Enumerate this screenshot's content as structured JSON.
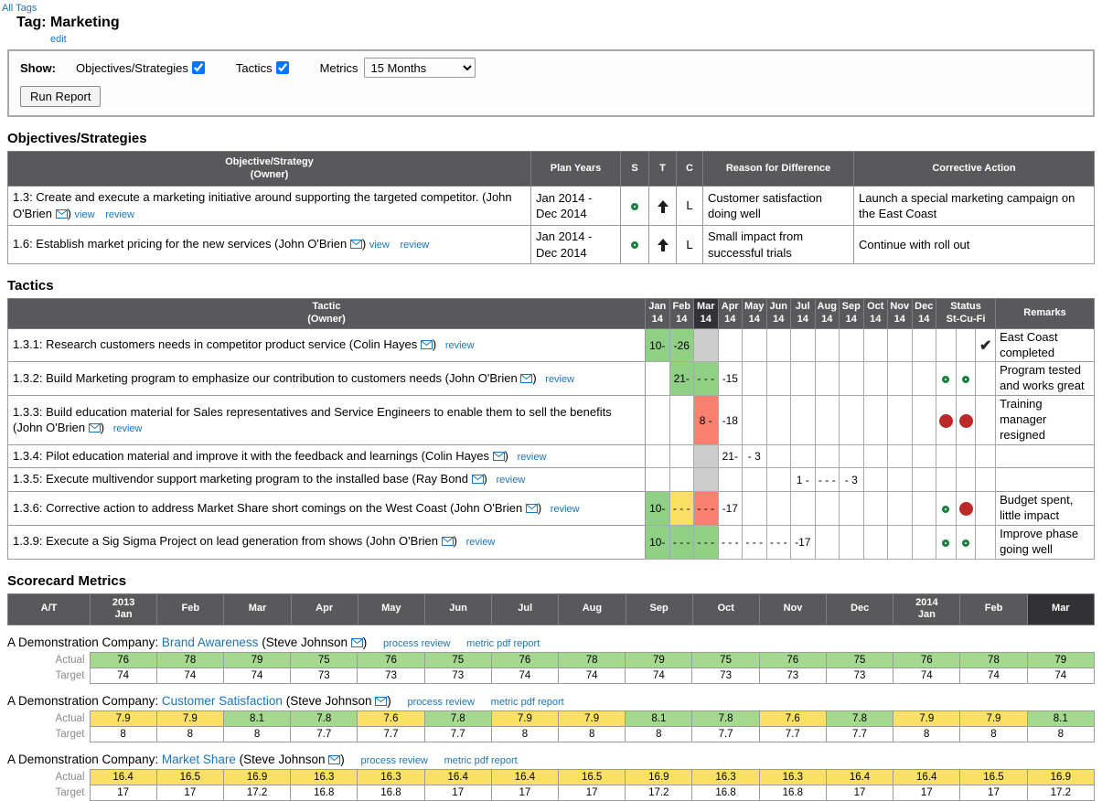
{
  "labels": {
    "all_tags": "All Tags",
    "edit": "edit",
    "view": "view",
    "review": "review",
    "paren_open": "(",
    "paren_close": ")",
    "actual": "Actual",
    "target": "Target",
    "process_review": "process review",
    "metric_pdf_report": "metric pdf report"
  },
  "page": {
    "title": "Tag: Marketing"
  },
  "controls": {
    "show": "Show:",
    "objectives_checkbox": "Objectives/Strategies",
    "tactics_checkbox": "Tactics",
    "metrics_label": "Metrics",
    "metrics_value": "15 Months",
    "run_report": "Run Report"
  },
  "objectives": {
    "title": "Objectives/Strategies",
    "headers": {
      "objective": "Objective/Strategy\n(Owner)",
      "plan_years": "Plan Years",
      "s": "S",
      "t": "T",
      "c": "C",
      "reason": "Reason for Difference",
      "corrective": "Corrective Action"
    },
    "rows": [
      {
        "text": "1.3: Create and execute a marketing initiative around supporting the targeted competitor.",
        "owner": "John O'Brien",
        "plan_years": "Jan 2014 - Dec 2014",
        "s": "green-ring",
        "t": "up-arrow",
        "c": "L",
        "reason": "Customer satisfaction doing well",
        "corrective": "Launch a special marketing campaign on the East Coast"
      },
      {
        "text": "1.6: Establish market pricing for the new services",
        "owner": "John O'Brien",
        "plan_years": "Jan 2014 - Dec 2014",
        "s": "green-ring",
        "t": "up-arrow",
        "c": "L",
        "reason": "Small impact from successful trials",
        "corrective": "Continue with roll out"
      }
    ]
  },
  "tactics": {
    "title": "Tactics",
    "headers": {
      "tactic": "Tactic\n(Owner)",
      "status": "Status\nSt-Cu-Fi",
      "remarks": "Remarks",
      "months": [
        {
          "t": "Jan\n14"
        },
        {
          "t": "Feb\n14"
        },
        {
          "t": "Mar\n14",
          "cur": true
        },
        {
          "t": "Apr\n14"
        },
        {
          "t": "May\n14"
        },
        {
          "t": "Jun\n14"
        },
        {
          "t": "Jul\n14"
        },
        {
          "t": "Aug\n14"
        },
        {
          "t": "Sep\n14"
        },
        {
          "t": "Oct\n14"
        },
        {
          "t": "Nov\n14"
        },
        {
          "t": "Dec\n14"
        }
      ]
    },
    "cell_colors": {
      "green": "#90d084",
      "yellow": "#fae164",
      "red": "#f97f6e",
      "gray": "#cccccc"
    },
    "status_colors": {
      "ok": "#1e7e3e",
      "alert": "#bb2a28"
    },
    "rows": [
      {
        "text": "1.3.1: Research customers needs in competitor product service",
        "owner": "Colin Hayes",
        "cells": [
          {
            "t": "10-",
            "bg": "#90d084"
          },
          {
            "t": "-26",
            "bg": "#90d084"
          },
          {
            "t": "",
            "bg": "#cccccc"
          },
          {},
          {},
          {},
          {},
          {},
          {},
          {},
          {},
          {}
        ],
        "status": [
          "",
          "",
          "check"
        ],
        "remarks": "East Coast completed"
      },
      {
        "text": "1.3.2: Build Marketing program to emphasize our contribution to customers needs",
        "owner": "John O'Brien",
        "cells": [
          {},
          {
            "t": "21-",
            "bg": "#90d084"
          },
          {
            "t": "- - -",
            "bg": "#90d084"
          },
          {
            "t": "-15"
          },
          {},
          {},
          {},
          {},
          {},
          {},
          {},
          {}
        ],
        "status": [
          "green-ring",
          "green-ring",
          ""
        ],
        "remarks": "Program tested and works great"
      },
      {
        "text": "1.3.3: Build education material for Sales representatives and Service Engineers to enable them to sell the benefits",
        "owner": "John O'Brien",
        "cells": [
          {},
          {},
          {
            "t": "8 -",
            "bg": "#f97f6e"
          },
          {
            "t": "-18"
          },
          {},
          {},
          {},
          {},
          {},
          {},
          {},
          {}
        ],
        "status": [
          "red-dot",
          "red-dot",
          ""
        ],
        "remarks": "Training manager resigned"
      },
      {
        "text": "1.3.4: Pilot education material and improve it with the feedback and learnings",
        "owner": "Colin Hayes",
        "cells": [
          {},
          {},
          {
            "t": "",
            "bg": "#cccccc"
          },
          {
            "t": "21-"
          },
          {
            "t": "- 3"
          },
          {},
          {},
          {},
          {},
          {},
          {},
          {}
        ],
        "status": [
          "",
          "",
          ""
        ],
        "remarks": ""
      },
      {
        "text": "1.3.5: Execute multivendor support marketing program to the installed base",
        "owner": "Ray Bond",
        "cells": [
          {},
          {},
          {
            "t": "",
            "bg": "#cccccc"
          },
          {},
          {},
          {},
          {
            "t": "1 -"
          },
          {
            "t": "- - -"
          },
          {
            "t": "- 3"
          },
          {},
          {},
          {}
        ],
        "status": [
          "",
          "",
          ""
        ],
        "remarks": ""
      },
      {
        "text": "1.3.6: Corrective action to address Market Share short comings on the West Coast",
        "owner": "John O'Brien",
        "cells": [
          {
            "t": "10-",
            "bg": "#90d084"
          },
          {
            "t": "- - -",
            "bg": "#fae164"
          },
          {
            "t": "- - -",
            "bg": "#f97f6e"
          },
          {
            "t": "-17"
          },
          {},
          {},
          {},
          {},
          {},
          {},
          {},
          {}
        ],
        "status": [
          "green-ring",
          "red-dot",
          ""
        ],
        "remarks": "Budget spent, little impact"
      },
      {
        "text": "1.3.9: Execute a Sig Sigma Project on lead generation from shows",
        "owner": "John O'Brien",
        "cells": [
          {
            "t": "10-",
            "bg": "#90d084"
          },
          {
            "t": "- - -",
            "bg": "#90d084"
          },
          {
            "t": "- - -",
            "bg": "#90d084"
          },
          {
            "t": "- - -"
          },
          {
            "t": "- - -"
          },
          {
            "t": "- - -"
          },
          {
            "t": "-17"
          },
          {},
          {},
          {},
          {},
          {}
        ],
        "status": [
          "green-ring",
          "green-ring",
          ""
        ],
        "remarks": "Improve phase going well"
      }
    ]
  },
  "metrics": {
    "title": "Scorecard Metrics",
    "headers": [
      {
        "t": "A/T"
      },
      {
        "t": "2013\nJan"
      },
      {
        "t": "Feb"
      },
      {
        "t": "Mar"
      },
      {
        "t": "Apr"
      },
      {
        "t": "May"
      },
      {
        "t": "Jun"
      },
      {
        "t": "Jul"
      },
      {
        "t": "Aug"
      },
      {
        "t": "Sep"
      },
      {
        "t": "Oct"
      },
      {
        "t": "Nov"
      },
      {
        "t": "Dec"
      },
      {
        "t": "2014\nJan"
      },
      {
        "t": "Feb"
      },
      {
        "t": "Mar",
        "cur": true
      }
    ],
    "cell_colors": {
      "green": "#a6d990",
      "yellow": "#fae164"
    },
    "groups": [
      {
        "company": "A Demonstration Company:",
        "name": "Brand Awareness",
        "owner": "Steve Johnson",
        "actual": [
          {
            "t": "76",
            "bg": "#a6d990"
          },
          {
            "t": "78",
            "bg": "#a6d990"
          },
          {
            "t": "79",
            "bg": "#a6d990"
          },
          {
            "t": "75",
            "bg": "#a6d990"
          },
          {
            "t": "76",
            "bg": "#a6d990"
          },
          {
            "t": "75",
            "bg": "#a6d990"
          },
          {
            "t": "76",
            "bg": "#a6d990"
          },
          {
            "t": "78",
            "bg": "#a6d990"
          },
          {
            "t": "79",
            "bg": "#a6d990"
          },
          {
            "t": "75",
            "bg": "#a6d990"
          },
          {
            "t": "76",
            "bg": "#a6d990"
          },
          {
            "t": "75",
            "bg": "#a6d990"
          },
          {
            "t": "76",
            "bg": "#a6d990"
          },
          {
            "t": "78",
            "bg": "#a6d990"
          },
          {
            "t": "79",
            "bg": "#a6d990"
          }
        ],
        "target": [
          {
            "t": "74"
          },
          {
            "t": "74"
          },
          {
            "t": "74"
          },
          {
            "t": "73"
          },
          {
            "t": "73"
          },
          {
            "t": "73"
          },
          {
            "t": "74"
          },
          {
            "t": "74"
          },
          {
            "t": "74"
          },
          {
            "t": "73"
          },
          {
            "t": "73"
          },
          {
            "t": "73"
          },
          {
            "t": "74"
          },
          {
            "t": "74"
          },
          {
            "t": "74"
          }
        ]
      },
      {
        "company": "A Demonstration Company:",
        "name": "Customer Satisfaction",
        "owner": "Steve Johnson",
        "actual": [
          {
            "t": "7.9",
            "bg": "#fae164"
          },
          {
            "t": "7.9",
            "bg": "#fae164"
          },
          {
            "t": "8.1",
            "bg": "#a6d990"
          },
          {
            "t": "7.8",
            "bg": "#a6d990"
          },
          {
            "t": "7.6",
            "bg": "#fae164"
          },
          {
            "t": "7.8",
            "bg": "#a6d990"
          },
          {
            "t": "7.9",
            "bg": "#fae164"
          },
          {
            "t": "7.9",
            "bg": "#fae164"
          },
          {
            "t": "8.1",
            "bg": "#a6d990"
          },
          {
            "t": "7.8",
            "bg": "#a6d990"
          },
          {
            "t": "7.6",
            "bg": "#fae164"
          },
          {
            "t": "7.8",
            "bg": "#a6d990"
          },
          {
            "t": "7.9",
            "bg": "#fae164"
          },
          {
            "t": "7.9",
            "bg": "#fae164"
          },
          {
            "t": "8.1",
            "bg": "#a6d990"
          }
        ],
        "target": [
          {
            "t": "8"
          },
          {
            "t": "8"
          },
          {
            "t": "8"
          },
          {
            "t": "7.7"
          },
          {
            "t": "7.7"
          },
          {
            "t": "7.7"
          },
          {
            "t": "8"
          },
          {
            "t": "8"
          },
          {
            "t": "8"
          },
          {
            "t": "7.7"
          },
          {
            "t": "7.7"
          },
          {
            "t": "7.7"
          },
          {
            "t": "8"
          },
          {
            "t": "8"
          },
          {
            "t": "8"
          }
        ]
      },
      {
        "company": "A Demonstration Company:",
        "name": "Market Share",
        "owner": "Steve Johnson",
        "actual": [
          {
            "t": "16.4",
            "bg": "#fae164"
          },
          {
            "t": "16.5",
            "bg": "#fae164"
          },
          {
            "t": "16.9",
            "bg": "#fae164"
          },
          {
            "t": "16.3",
            "bg": "#fae164"
          },
          {
            "t": "16.3",
            "bg": "#fae164"
          },
          {
            "t": "16.4",
            "bg": "#fae164"
          },
          {
            "t": "16.4",
            "bg": "#fae164"
          },
          {
            "t": "16.5",
            "bg": "#fae164"
          },
          {
            "t": "16.9",
            "bg": "#fae164"
          },
          {
            "t": "16.3",
            "bg": "#fae164"
          },
          {
            "t": "16.3",
            "bg": "#fae164"
          },
          {
            "t": "16.4",
            "bg": "#fae164"
          },
          {
            "t": "16.4",
            "bg": "#fae164"
          },
          {
            "t": "16.5",
            "bg": "#fae164"
          },
          {
            "t": "16.9",
            "bg": "#fae164"
          }
        ],
        "target": [
          {
            "t": "17"
          },
          {
            "t": "17"
          },
          {
            "t": "17.2"
          },
          {
            "t": "16.8"
          },
          {
            "t": "16.8"
          },
          {
            "t": "17"
          },
          {
            "t": "17"
          },
          {
            "t": "17"
          },
          {
            "t": "17.2"
          },
          {
            "t": "16.8"
          },
          {
            "t": "16.8"
          },
          {
            "t": "17"
          },
          {
            "t": "17"
          },
          {
            "t": "17"
          },
          {
            "t": "17.2"
          }
        ]
      }
    ]
  }
}
